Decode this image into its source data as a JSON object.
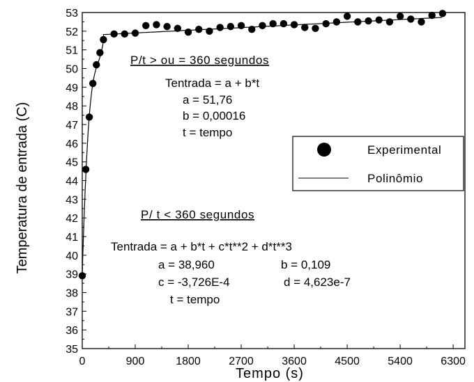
{
  "chart_data": {
    "type": "scatter",
    "title": "",
    "xlabel": "Tempo (s)",
    "ylabel": "Temperatura de entrada (C)",
    "xlim": [
      0,
      6500
    ],
    "ylim": [
      35,
      53
    ],
    "xticks": [
      0,
      900,
      1800,
      2700,
      3600,
      4500,
      5400,
      6300
    ],
    "yticks": [
      35,
      36,
      37,
      38,
      39,
      40,
      41,
      42,
      43,
      44,
      45,
      46,
      47,
      48,
      49,
      50,
      51,
      52,
      53
    ],
    "grid": false,
    "legend_position": "right",
    "series": [
      {
        "name": "Experimental",
        "kind": "points",
        "x": [
          0,
          60,
          120,
          180,
          240,
          300,
          360,
          540,
          720,
          900,
          1080,
          1260,
          1440,
          1620,
          1800,
          1980,
          2160,
          2340,
          2520,
          2700,
          2880,
          3060,
          3240,
          3420,
          3600,
          3780,
          3960,
          4140,
          4320,
          4500,
          4680,
          4860,
          5040,
          5220,
          5400,
          5580,
          5760,
          5940,
          6120
        ],
        "y": [
          38.9,
          44.6,
          47.4,
          49.2,
          50.2,
          50.85,
          51.55,
          51.85,
          51.85,
          51.9,
          52.3,
          52.35,
          52.25,
          52.15,
          51.95,
          52.1,
          52.0,
          52.2,
          52.25,
          52.3,
          52.1,
          52.3,
          52.4,
          52.4,
          52.35,
          52.2,
          52.15,
          52.4,
          52.5,
          52.8,
          52.5,
          52.55,
          52.6,
          52.5,
          52.8,
          52.65,
          52.5,
          52.85,
          52.95
        ]
      },
      {
        "name": "Polinômio",
        "kind": "line",
        "piecewise": [
          {
            "t_max": 360,
            "coefficients": [
              38.96,
              0.109,
              -0.0003726,
              4.623e-07
            ]
          },
          {
            "t_min": 360,
            "coefficients": [
              51.76,
              0.00016
            ]
          }
        ]
      }
    ],
    "annotations": [
      {
        "heading": "P/t > ou = 360 segundos",
        "lines": [
          "Tentrada = a + b*t",
          "a = 51,76",
          "b = 0,00016",
          "t = tempo"
        ]
      },
      {
        "heading": "P/ t < 360 segundos",
        "lines": [
          "Tentrada = a + b*t + c*t**2 + d*t**3",
          "a = 38,960",
          "b = 0,109",
          "c = -3,726E-4",
          "d = 4,623e-7",
          "t = tempo"
        ]
      }
    ]
  }
}
